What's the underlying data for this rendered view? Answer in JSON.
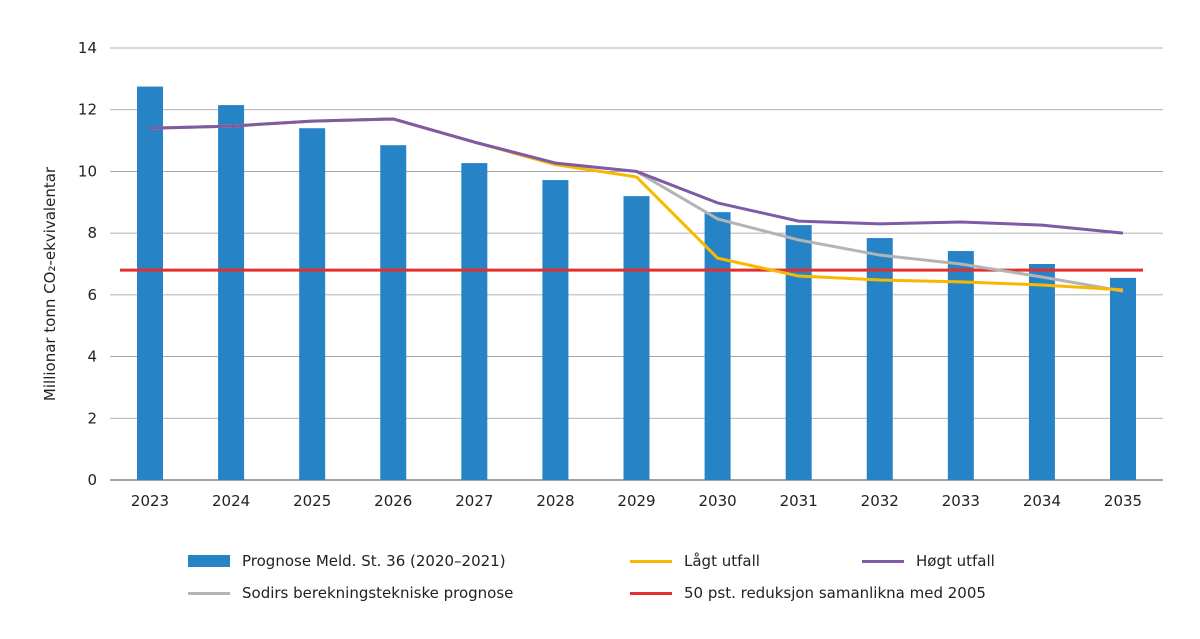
{
  "chart_data": {
    "type": "bar",
    "title": "",
    "xlabel": "",
    "ylabel": "Millionar tonn CO₂-ekvivalentar",
    "ylim": [
      0,
      14
    ],
    "yticks": [
      "0",
      "2",
      "4",
      "6",
      "8",
      "10",
      "12",
      "14"
    ],
    "grid": true,
    "legend_position": "bottom",
    "categories": [
      "2023",
      "2024",
      "2025",
      "2026",
      "2027",
      "2028",
      "2029",
      "2030",
      "2031",
      "2032",
      "2033",
      "2034",
      "2035"
    ],
    "series": [
      {
        "name": "Prognose Meld. St. 36 (2020–2021)",
        "kind": "bar",
        "color": "#2683c6",
        "values": [
          12.75,
          12.15,
          11.4,
          10.85,
          10.27,
          9.72,
          9.2,
          8.68,
          8.26,
          7.84,
          7.42,
          7.0,
          6.55
        ]
      },
      {
        "name": "Sodirs berekningstekniske prognose",
        "kind": "line",
        "color": "#b4b4b4",
        "values": [
          11.4,
          11.47,
          11.63,
          11.7,
          10.95,
          10.27,
          10.0,
          8.46,
          7.78,
          7.29,
          7.0,
          6.58,
          6.12
        ]
      },
      {
        "name": "Lågt utfall",
        "kind": "line",
        "color": "#f9b800",
        "values": [
          11.4,
          11.47,
          11.63,
          11.7,
          10.95,
          10.22,
          9.82,
          7.19,
          6.61,
          6.48,
          6.42,
          6.32,
          6.16
        ]
      },
      {
        "name": "Høgt utfall",
        "kind": "line",
        "color": "#7f5aa6",
        "values": [
          11.4,
          11.47,
          11.63,
          11.7,
          10.95,
          10.27,
          10.0,
          8.98,
          8.39,
          8.3,
          8.36,
          8.26,
          8.0
        ]
      },
      {
        "name": "50 pst. reduksjon samanlikna med 2005",
        "kind": "line",
        "color": "#e2312d",
        "values": [
          6.8,
          6.8,
          6.8,
          6.8,
          6.8,
          6.8,
          6.8,
          6.8,
          6.8,
          6.8,
          6.8,
          6.8,
          6.8
        ]
      }
    ]
  }
}
